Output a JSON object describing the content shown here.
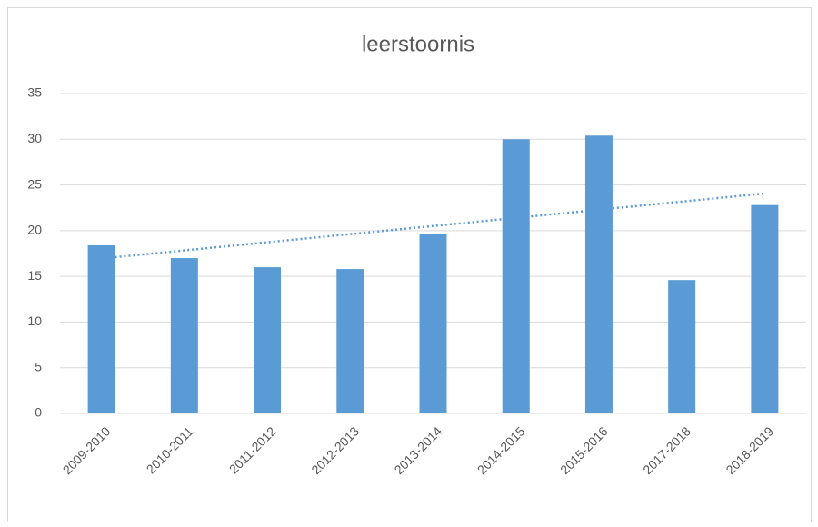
{
  "chart_data": {
    "type": "bar",
    "title": "leerstoornis",
    "categories": [
      "2009-2010",
      "2010-2011",
      "2011-2012",
      "2012-2013",
      "2013-2014",
      "2014-2015",
      "2015-2016",
      "2017-2018",
      "2018-2019"
    ],
    "values": [
      18.4,
      17.0,
      16.0,
      15.8,
      19.6,
      30.0,
      30.4,
      14.6,
      22.8
    ],
    "color": "#5b9bd5",
    "ylim": [
      0,
      35
    ],
    "yticks": [
      0,
      5,
      10,
      15,
      20,
      25,
      30,
      35
    ],
    "grid": true,
    "trendline": {
      "type": "linear",
      "color": "#5b9bd5"
    }
  }
}
